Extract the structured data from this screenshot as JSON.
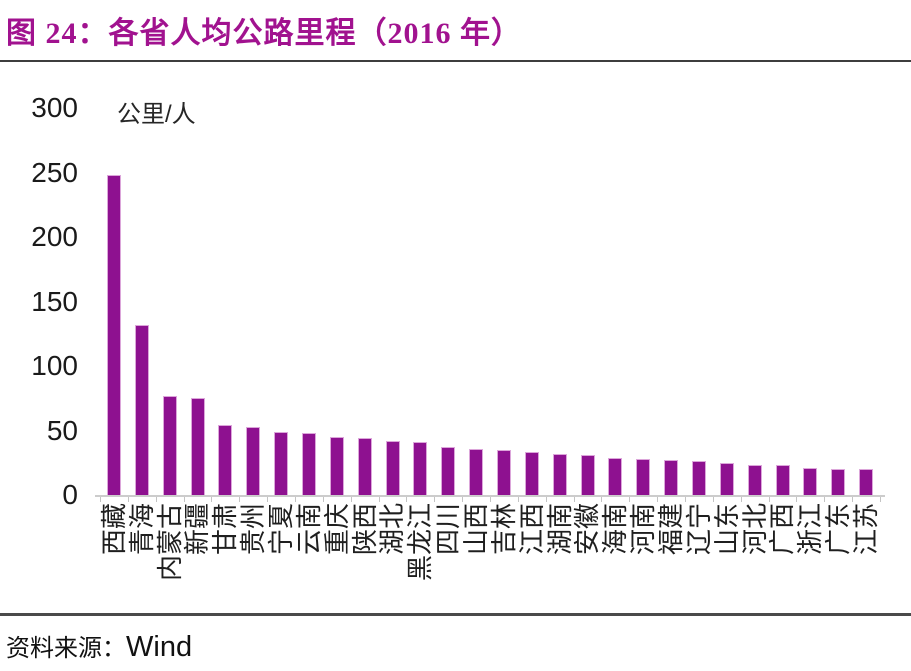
{
  "figure": {
    "title": "图 24：各省人均公路里程（2016 年）",
    "source_prefix": "资料来源：",
    "source_value": "Wind"
  },
  "chart_data": {
    "type": "bar",
    "title": "各省人均公路里程（2016 年）",
    "unit_label": "公里/人",
    "categories": [
      "西藏",
      "青海",
      "内蒙古",
      "新疆",
      "甘肃",
      "贵州",
      "宁夏",
      "云南",
      "重庆",
      "陕西",
      "湖北",
      "黑龙江",
      "四川",
      "山西",
      "吉林",
      "江西",
      "湖南",
      "安徽",
      "海南",
      "河南",
      "福建",
      "辽宁",
      "山东",
      "河北",
      "广西",
      "浙江",
      "广东",
      "江苏"
    ],
    "values": [
      248,
      132,
      77,
      75,
      54,
      53,
      49,
      48,
      45,
      44,
      42,
      41,
      37,
      36,
      35,
      33,
      32,
      31,
      29,
      28,
      27,
      26,
      25,
      23,
      23,
      21,
      20,
      20
    ],
    "xlabel": "",
    "ylabel": "公里/人",
    "ylim": [
      0,
      300
    ],
    "yticks": [
      0,
      50,
      100,
      150,
      200,
      250,
      300
    ],
    "grid": false,
    "legend_position": "none",
    "bar_color": "#8E1190",
    "bar_border_color": "#DCA6DA",
    "title_color": "#A1128F",
    "axis_line_color": "#cccccc"
  }
}
